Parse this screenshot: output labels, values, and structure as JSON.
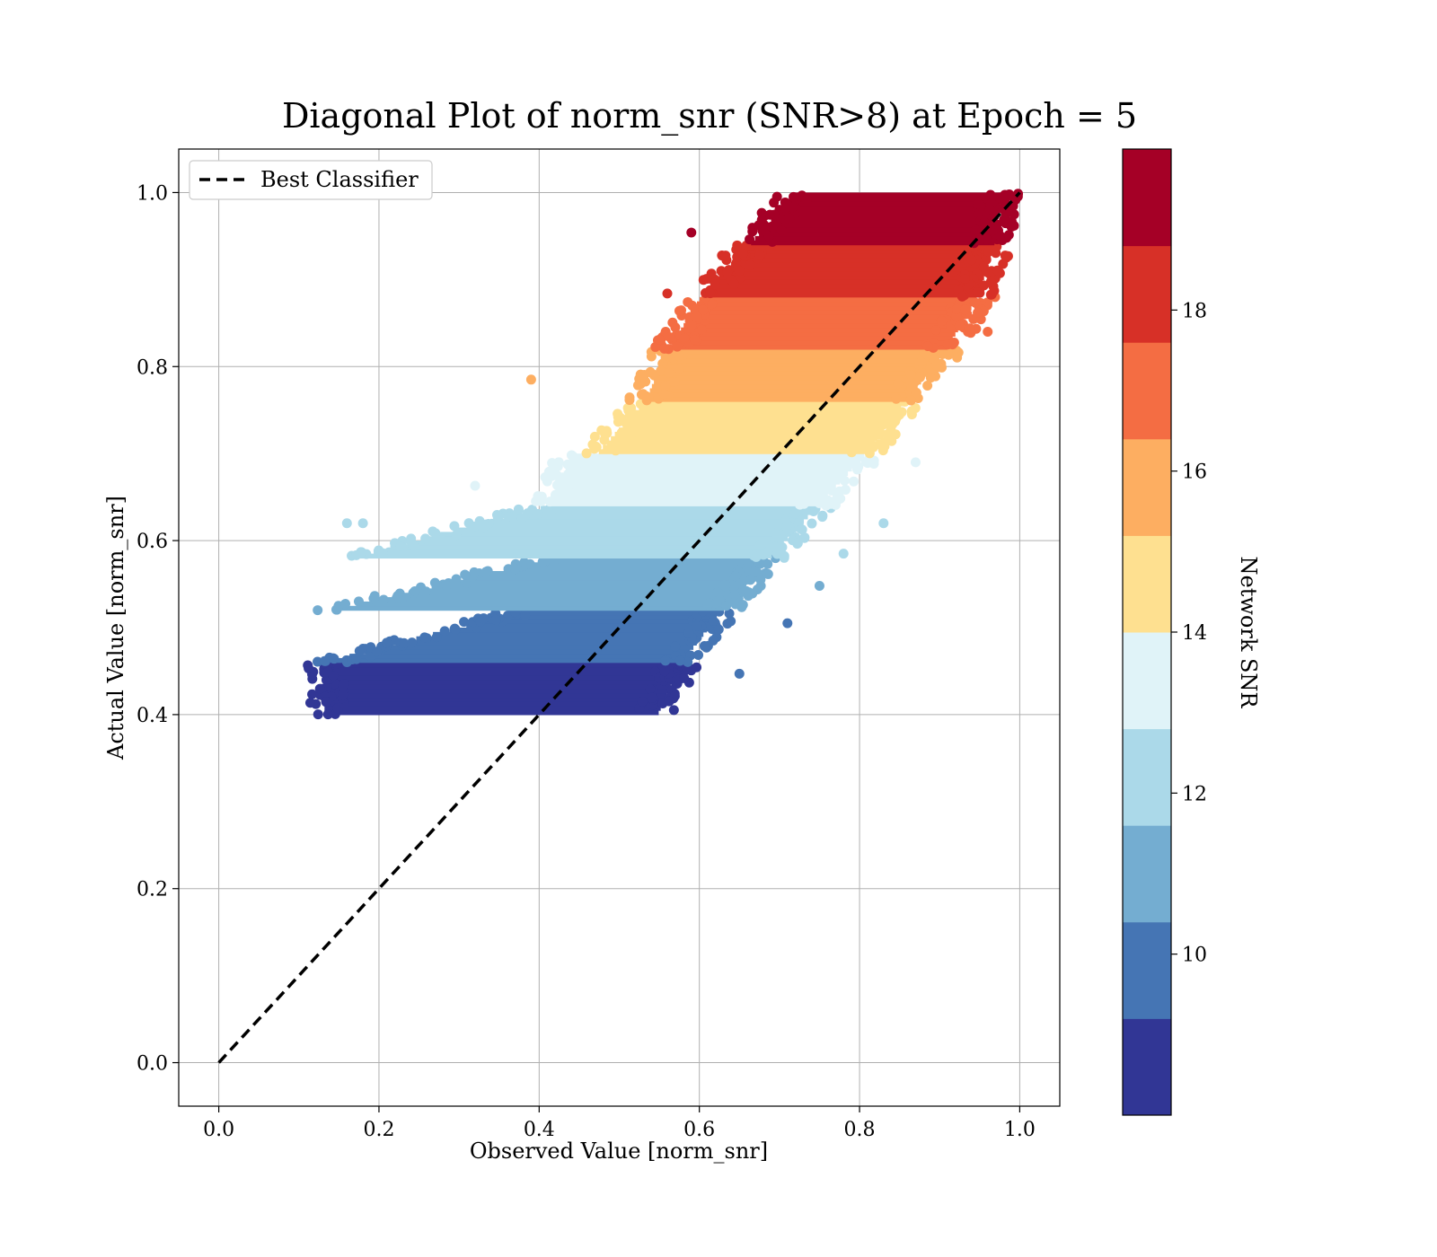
{
  "chart_data": {
    "type": "scatter",
    "title": "Diagonal Plot of norm_snr (SNR>8) at Epoch = 5",
    "xlabel": "Observed Value [norm_snr]",
    "ylabel": "Actual Value [norm_snr]",
    "xlim": [
      -0.05,
      1.05
    ],
    "ylim": [
      -0.05,
      1.05
    ],
    "x_ticks": [
      "0.0",
      "0.2",
      "0.4",
      "0.6",
      "0.8",
      "1.0"
    ],
    "y_ticks": [
      "0.0",
      "0.2",
      "0.4",
      "0.6",
      "0.8",
      "1.0"
    ],
    "grid": true,
    "legend": {
      "position": "top-left",
      "entries": [
        "Best Classifier"
      ]
    },
    "reference_line": {
      "name": "Best Classifier",
      "style": "dashed",
      "color": "#000000",
      "x": [
        0,
        1
      ],
      "y": [
        0,
        1
      ]
    },
    "colorbar": {
      "label": "Network SNR",
      "range": [
        8,
        20
      ],
      "ticks": [
        "10",
        "12",
        "14",
        "16",
        "18"
      ],
      "colors": [
        "#313695",
        "#4575b4",
        "#74add1",
        "#abd9e9",
        "#e0f3f8",
        "#fee090",
        "#fdae61",
        "#f46d43",
        "#d73027",
        "#a50026"
      ]
    },
    "bands": [
      {
        "snr": [
          8,
          9.2
        ],
        "y": [
          0.4,
          0.46
        ],
        "x_min": [
          0.12,
          0.12
        ],
        "x_max": [
          0.56,
          0.59
        ],
        "color": "#313695"
      },
      {
        "snr": [
          9.2,
          10.4
        ],
        "y": [
          0.46,
          0.52
        ],
        "x_min": [
          0.12,
          0.37
        ],
        "x_max": [
          0.59,
          0.64
        ],
        "color": "#4575b4"
      },
      {
        "snr": [
          10.4,
          11.6
        ],
        "y": [
          0.52,
          0.58
        ],
        "x_min": [
          0.13,
          0.4
        ],
        "x_max": [
          0.64,
          0.7
        ],
        "color": "#74add1"
      },
      {
        "snr": [
          11.6,
          12.8
        ],
        "y": [
          0.58,
          0.64
        ],
        "x_min": [
          0.15,
          0.4
        ],
        "x_max": [
          0.7,
          0.76
        ],
        "color": "#abd9e9"
      },
      {
        "snr": [
          12.8,
          14.0
        ],
        "y": [
          0.64,
          0.7
        ],
        "x_min": [
          0.4,
          0.43
        ],
        "x_max": [
          0.76,
          0.82
        ],
        "color": "#e0f3f8"
      },
      {
        "snr": [
          14.0,
          15.2
        ],
        "y": [
          0.7,
          0.76
        ],
        "x_min": [
          0.46,
          0.52
        ],
        "x_max": [
          0.82,
          0.87
        ],
        "color": "#fee090"
      },
      {
        "snr": [
          15.2,
          16.4
        ],
        "y": [
          0.76,
          0.82
        ],
        "x_min": [
          0.52,
          0.55
        ],
        "x_max": [
          0.87,
          0.92
        ],
        "color": "#fdae61"
      },
      {
        "snr": [
          16.4,
          17.6
        ],
        "y": [
          0.82,
          0.88
        ],
        "x_min": [
          0.55,
          0.59
        ],
        "x_max": [
          0.92,
          0.96
        ],
        "color": "#f46d43"
      },
      {
        "snr": [
          17.6,
          18.8
        ],
        "y": [
          0.88,
          0.94
        ],
        "x_min": [
          0.59,
          0.65
        ],
        "x_max": [
          0.96,
          0.98
        ],
        "color": "#d73027"
      },
      {
        "snr": [
          18.8,
          20.0
        ],
        "y": [
          0.94,
          1.0
        ],
        "x_min": [
          0.65,
          0.71
        ],
        "x_max": [
          0.98,
          0.99
        ],
        "color": "#a50026"
      }
    ],
    "outliers": [
      {
        "x": 0.39,
        "y": 0.785,
        "color": "#fdae61"
      },
      {
        "x": 0.65,
        "y": 0.447,
        "color": "#4575b4"
      },
      {
        "x": 0.71,
        "y": 0.505,
        "color": "#4575b4"
      },
      {
        "x": 0.75,
        "y": 0.548,
        "color": "#74add1"
      },
      {
        "x": 0.78,
        "y": 0.585,
        "color": "#abd9e9"
      },
      {
        "x": 0.83,
        "y": 0.62,
        "color": "#abd9e9"
      },
      {
        "x": 0.16,
        "y": 0.62,
        "color": "#abd9e9"
      },
      {
        "x": 0.18,
        "y": 0.62,
        "color": "#abd9e9"
      },
      {
        "x": 0.32,
        "y": 0.663,
        "color": "#e0f3f8"
      },
      {
        "x": 0.87,
        "y": 0.69,
        "color": "#e0f3f8"
      },
      {
        "x": 0.96,
        "y": 0.84,
        "color": "#f46d43"
      },
      {
        "x": 0.65,
        "y": 0.91,
        "color": "#d73027"
      },
      {
        "x": 0.59,
        "y": 0.954,
        "color": "#a50026"
      },
      {
        "x": 0.57,
        "y": 0.845,
        "color": "#f46d43"
      },
      {
        "x": 0.56,
        "y": 0.884,
        "color": "#d73027"
      }
    ]
  }
}
